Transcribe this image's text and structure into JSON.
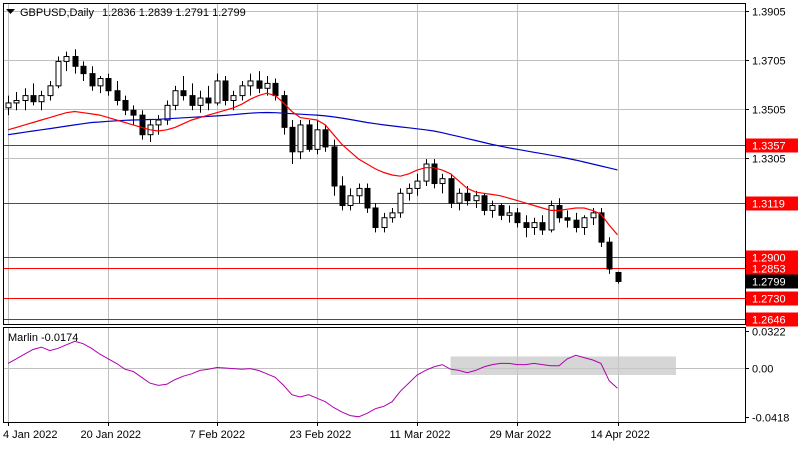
{
  "header": {
    "symbol": "GBPUSD,Daily",
    "ohlc": "1.2836 1.2839 1.2791 1.2799"
  },
  "colors": {
    "background": "#ffffff",
    "grid": "#c0c0c0",
    "frame": "#000000",
    "level": "#ff0000",
    "ma_fast": "#ff0000",
    "ma_slow": "#0000cc",
    "marlin": "#b000b0",
    "shade": "#c8c8c8",
    "current": "#000000"
  },
  "chart_data": [
    {
      "type": "candlestick",
      "title": "GBPUSD,Daily",
      "ylim": [
        1.2625,
        1.3935
      ],
      "y_ticks": [
        "1.3905",
        "1.3705",
        "1.3505",
        "1.3305"
      ],
      "x_ticks": [
        "4 Jan 2022",
        "20 Jan 2022",
        "7 Feb 2022",
        "23 Feb 2022",
        "11 Mar 2022",
        "29 Mar 2022",
        "14 Apr 2022"
      ],
      "x_tick_index": [
        0,
        12,
        25,
        37,
        49,
        61,
        73
      ],
      "grid": true,
      "levels": [
        {
          "value": 1.3357,
          "label": "1.3357"
        },
        {
          "value": 1.3119,
          "label": "1.3119"
        },
        {
          "value": 1.29,
          "label": "1.2900"
        },
        {
          "value": 1.2853,
          "label": "1.2853"
        },
        {
          "value": 1.273,
          "label": "1.2730"
        },
        {
          "value": 1.2646,
          "label": "1.2646"
        }
      ],
      "current": {
        "value": 1.2799,
        "label": "1.2799"
      },
      "candles": [
        [
          1.351,
          1.356,
          1.348,
          1.353
        ],
        [
          1.353,
          1.3575,
          1.35,
          1.354
        ],
        [
          1.354,
          1.359,
          1.35,
          1.356
        ],
        [
          1.356,
          1.361,
          1.352,
          1.3535
        ],
        [
          1.3535,
          1.358,
          1.35,
          1.356
        ],
        [
          1.356,
          1.362,
          1.354,
          1.36
        ],
        [
          1.36,
          1.372,
          1.359,
          1.37
        ],
        [
          1.37,
          1.374,
          1.366,
          1.372
        ],
        [
          1.372,
          1.375,
          1.365,
          1.368
        ],
        [
          1.368,
          1.37,
          1.362,
          1.365
        ],
        [
          1.365,
          1.368,
          1.358,
          1.36
        ],
        [
          1.36,
          1.364,
          1.357,
          1.363
        ],
        [
          1.363,
          1.365,
          1.356,
          1.358
        ],
        [
          1.358,
          1.362,
          1.352,
          1.354
        ],
        [
          1.354,
          1.356,
          1.348,
          1.35
        ],
        [
          1.35,
          1.352,
          1.344,
          1.348
        ],
        [
          1.348,
          1.35,
          1.338,
          1.34
        ],
        [
          1.34,
          1.346,
          1.337,
          1.344
        ],
        [
          1.344,
          1.348,
          1.34,
          1.346
        ],
        [
          1.346,
          1.354,
          1.344,
          1.352
        ],
        [
          1.352,
          1.36,
          1.35,
          1.358
        ],
        [
          1.358,
          1.364,
          1.354,
          1.356
        ],
        [
          1.356,
          1.361,
          1.35,
          1.352
        ],
        [
          1.352,
          1.358,
          1.349,
          1.355
        ],
        [
          1.355,
          1.36,
          1.35,
          1.353
        ],
        [
          1.353,
          1.365,
          1.352,
          1.362
        ],
        [
          1.362,
          1.364,
          1.352,
          1.354
        ],
        [
          1.354,
          1.358,
          1.35,
          1.356
        ],
        [
          1.356,
          1.362,
          1.354,
          1.36
        ],
        [
          1.36,
          1.365,
          1.356,
          1.362
        ],
        [
          1.362,
          1.366,
          1.357,
          1.359
        ],
        [
          1.359,
          1.364,
          1.356,
          1.361
        ],
        [
          1.361,
          1.363,
          1.354,
          1.356
        ],
        [
          1.356,
          1.358,
          1.34,
          1.343
        ],
        [
          1.343,
          1.346,
          1.328,
          1.333
        ],
        [
          1.333,
          1.346,
          1.33,
          1.344
        ],
        [
          1.344,
          1.346,
          1.333,
          1.334
        ],
        [
          1.334,
          1.346,
          1.332,
          1.342
        ],
        [
          1.342,
          1.344,
          1.333,
          1.335
        ],
        [
          1.335,
          1.338,
          1.315,
          1.319
        ],
        [
          1.319,
          1.323,
          1.309,
          1.311
        ],
        [
          1.311,
          1.318,
          1.309,
          1.315
        ],
        [
          1.315,
          1.32,
          1.312,
          1.318
        ],
        [
          1.318,
          1.32,
          1.308,
          1.31
        ],
        [
          1.31,
          1.312,
          1.3,
          1.302
        ],
        [
          1.302,
          1.308,
          1.3,
          1.306
        ],
        [
          1.306,
          1.31,
          1.304,
          1.308
        ],
        [
          1.308,
          1.318,
          1.306,
          1.316
        ],
        [
          1.316,
          1.32,
          1.313,
          1.318
        ],
        [
          1.318,
          1.324,
          1.315,
          1.321
        ],
        [
          1.321,
          1.33,
          1.319,
          1.328
        ],
        [
          1.328,
          1.33,
          1.318,
          1.32
        ],
        [
          1.32,
          1.324,
          1.316,
          1.322
        ],
        [
          1.322,
          1.324,
          1.31,
          1.312
        ],
        [
          1.312,
          1.318,
          1.309,
          1.316
        ],
        [
          1.316,
          1.319,
          1.311,
          1.313
        ],
        [
          1.313,
          1.317,
          1.31,
          1.315
        ],
        [
          1.315,
          1.316,
          1.307,
          1.309
        ],
        [
          1.309,
          1.313,
          1.306,
          1.311
        ],
        [
          1.311,
          1.312,
          1.305,
          1.307
        ],
        [
          1.307,
          1.311,
          1.304,
          1.308
        ],
        [
          1.308,
          1.31,
          1.302,
          1.304
        ],
        [
          1.304,
          1.307,
          1.298,
          1.302
        ],
        [
          1.302,
          1.306,
          1.299,
          1.304
        ],
        [
          1.304,
          1.307,
          1.299,
          1.301
        ],
        [
          1.301,
          1.313,
          1.3,
          1.311
        ],
        [
          1.311,
          1.314,
          1.304,
          1.306
        ],
        [
          1.306,
          1.309,
          1.302,
          1.305
        ],
        [
          1.305,
          1.308,
          1.3,
          1.302
        ],
        [
          1.302,
          1.307,
          1.299,
          1.306
        ],
        [
          1.306,
          1.31,
          1.303,
          1.308
        ],
        [
          1.308,
          1.31,
          1.294,
          1.296
        ],
        [
          1.296,
          1.298,
          1.283,
          1.285
        ],
        [
          1.2836,
          1.2839,
          1.2791,
          1.2799
        ]
      ],
      "ma_fast": [
        1.342,
        1.343,
        1.344,
        1.345,
        1.346,
        1.347,
        1.348,
        1.349,
        1.3495,
        1.349,
        1.3485,
        1.348,
        1.347,
        1.346,
        1.345,
        1.344,
        1.343,
        1.342,
        1.3415,
        1.342,
        1.343,
        1.3445,
        1.346,
        1.347,
        1.348,
        1.349,
        1.35,
        1.351,
        1.3525,
        1.3545,
        1.356,
        1.357,
        1.356,
        1.353,
        1.3495,
        1.347,
        1.3465,
        1.346,
        1.344,
        1.34,
        1.336,
        1.333,
        1.33,
        1.328,
        1.326,
        1.3245,
        1.3235,
        1.323,
        1.324,
        1.3255,
        1.3265,
        1.3265,
        1.3255,
        1.324,
        1.321,
        1.318,
        1.3165,
        1.316,
        1.3155,
        1.315,
        1.314,
        1.313,
        1.312,
        1.311,
        1.31,
        1.309,
        1.309,
        1.3095,
        1.31,
        1.31,
        1.309,
        1.3075,
        1.303,
        1.299
      ],
      "ma_slow": [
        1.34,
        1.3405,
        1.341,
        1.3415,
        1.342,
        1.3425,
        1.343,
        1.3435,
        1.344,
        1.3445,
        1.345,
        1.3452,
        1.3455,
        1.3457,
        1.3459,
        1.346,
        1.3461,
        1.3462,
        1.3463,
        1.3465,
        1.3467,
        1.3469,
        1.3471,
        1.3473,
        1.3475,
        1.3477,
        1.3479,
        1.3482,
        1.3485,
        1.3488,
        1.349,
        1.3491,
        1.349,
        1.3488,
        1.3486,
        1.3484,
        1.3482,
        1.348,
        1.3477,
        1.3473,
        1.3468,
        1.3462,
        1.3456,
        1.345,
        1.3445,
        1.344,
        1.3436,
        1.3432,
        1.3428,
        1.3424,
        1.342,
        1.3415,
        1.3408,
        1.34,
        1.3392,
        1.3384,
        1.3376,
        1.3368,
        1.336,
        1.3353,
        1.3346,
        1.334,
        1.3334,
        1.3328,
        1.3322,
        1.3316,
        1.331,
        1.3303,
        1.3296,
        1.3288,
        1.328,
        1.3272,
        1.3264,
        1.3256
      ]
    },
    {
      "type": "line",
      "title": "Marlin -0.0174",
      "ylim": [
        -0.0465,
        0.0345
      ],
      "y_ticks": [
        "0.0322",
        "0.00",
        "-0.0418"
      ],
      "shade": {
        "from_index": 53,
        "to_index": 80,
        "ylim": [
          -0.006,
          0.01
        ]
      },
      "series": [
        {
          "values": [
            0.004,
            0.008,
            0.012,
            0.016,
            0.018,
            0.015,
            0.017,
            0.02,
            0.023,
            0.021,
            0.017,
            0.012,
            0.008,
            0.004,
            -0.001,
            -0.003,
            -0.008,
            -0.013,
            -0.015,
            -0.014,
            -0.01,
            -0.007,
            -0.005,
            -0.002,
            -0.001,
            0.0005,
            0.0,
            -0.0005,
            -0.001,
            -0.0005,
            -0.002,
            -0.005,
            -0.008,
            -0.015,
            -0.023,
            -0.025,
            -0.023,
            -0.026,
            -0.029,
            -0.034,
            -0.038,
            -0.041,
            -0.042,
            -0.039,
            -0.035,
            -0.033,
            -0.029,
            -0.02,
            -0.013,
            -0.006,
            -0.002,
            0.001,
            0.003,
            -0.001,
            -0.002,
            -0.004,
            -0.002,
            0.001,
            0.003,
            0.004,
            0.004,
            0.003,
            0.003,
            0.004,
            0.003,
            0.002,
            0.002,
            0.008,
            0.011,
            0.009,
            0.007,
            0.004,
            -0.011,
            -0.0174
          ]
        }
      ]
    }
  ]
}
